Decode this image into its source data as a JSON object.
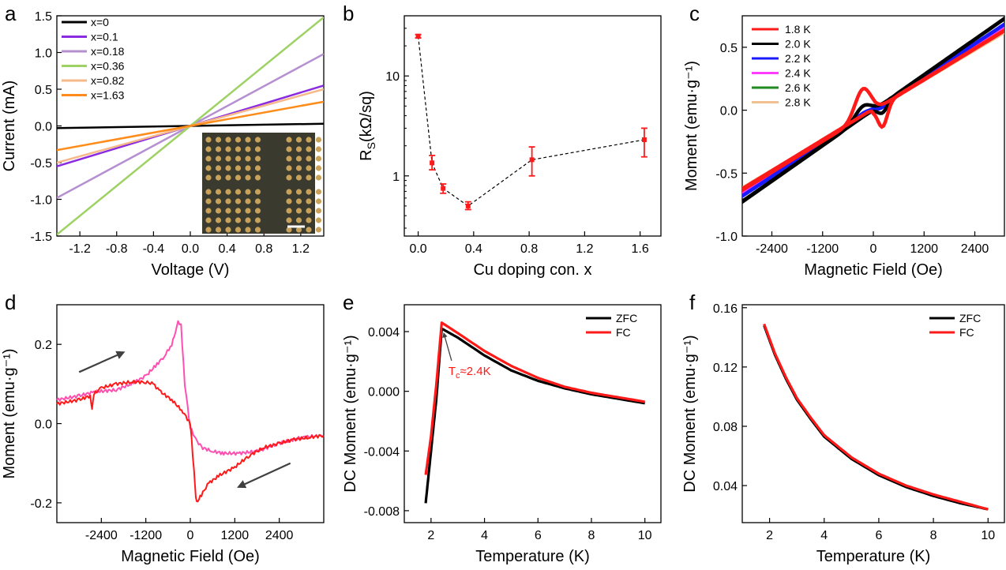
{
  "colors": {
    "black": "#000000",
    "red": "#ff1a1a",
    "purple": "#8a2be2",
    "lavender": "#b58fd0",
    "green": "#9ed264",
    "peach": "#f5b98a",
    "orange": "#ff8c1a",
    "blue": "#1a1aff",
    "magenta": "#ff3cff",
    "darkgreen": "#1f8a1f",
    "tan": "#f0c090",
    "pink": "#ff4fb0",
    "arrow": "#404040"
  },
  "chart_data": [
    {
      "panel": "a",
      "type": "line",
      "xlabel": "Voltage (V)",
      "ylabel": "Current (mA)",
      "xlim": [
        -1.45,
        1.45
      ],
      "ylim": [
        -1.5,
        1.5
      ],
      "xticks": [
        -1.2,
        -0.8,
        -0.4,
        0.0,
        0.4,
        0.8,
        1.2
      ],
      "xtick_labels": [
        "-1.2",
        "-0.8",
        "-0.4",
        "0.0",
        "0.4",
        "0.8",
        "1.2"
      ],
      "yticks": [
        -1.5,
        -1.0,
        -0.5,
        0.0,
        0.5,
        1.0,
        1.5
      ],
      "ytick_labels": [
        "-1.5",
        "-1.0",
        "-0.5",
        "0.0",
        "0.5",
        "1.0",
        "1.5"
      ],
      "legend": "top-left",
      "inset": "optical micrograph with scale bar",
      "series": [
        {
          "name": "x=0",
          "color": "#000000",
          "x": [
            -1.45,
            1.45
          ],
          "y": [
            -0.03,
            0.03
          ]
        },
        {
          "name": "x=0.1",
          "color": "#8a2be2",
          "x": [
            -1.45,
            1.45
          ],
          "y": [
            -0.55,
            0.55
          ]
        },
        {
          "name": "x=0.18",
          "color": "#b58fd0",
          "x": [
            -1.45,
            1.45
          ],
          "y": [
            -0.98,
            0.98
          ]
        },
        {
          "name": "x=0.36",
          "color": "#9ed264",
          "x": [
            -1.45,
            1.45
          ],
          "y": [
            -1.48,
            1.48
          ]
        },
        {
          "name": "x=0.82",
          "color": "#f5b98a",
          "x": [
            -1.45,
            1.45
          ],
          "y": [
            -0.5,
            0.5
          ]
        },
        {
          "name": "x=1.63",
          "color": "#ff8c1a",
          "x": [
            -1.45,
            1.45
          ],
          "y": [
            -0.33,
            0.33
          ]
        }
      ]
    },
    {
      "panel": "b",
      "type": "scatter",
      "xlabel": "Cu doping con. x",
      "ylabel_main": "R",
      "ylabel_sub": "S",
      "ylabel_rest": "(kΩ/sq)",
      "xlim": [
        -0.1,
        1.75
      ],
      "ylim": [
        0.25,
        40
      ],
      "yscale": "log",
      "xticks": [
        0.0,
        0.4,
        0.8,
        1.2,
        1.6
      ],
      "xtick_labels": [
        "0.0",
        "0.4",
        "0.8",
        "1.2",
        "1.6"
      ],
      "yticks": [
        1,
        10
      ],
      "ytick_labels": [
        "1",
        "10"
      ],
      "points": [
        {
          "x": 0.0,
          "y": 25,
          "lo": 24,
          "hi": 26
        },
        {
          "x": 0.1,
          "y": 1.35,
          "lo": 1.15,
          "hi": 1.6
        },
        {
          "x": 0.18,
          "y": 0.75,
          "lo": 0.67,
          "hi": 0.83
        },
        {
          "x": 0.36,
          "y": 0.5,
          "lo": 0.46,
          "hi": 0.55
        },
        {
          "x": 0.82,
          "y": 1.45,
          "lo": 1.0,
          "hi": 1.95
        },
        {
          "x": 1.63,
          "y": 2.3,
          "lo": 1.55,
          "hi": 3.0
        }
      ],
      "color": "#ff1a1a",
      "line": "dashed"
    },
    {
      "panel": "c",
      "type": "line",
      "xlabel": "Magnetic Field (Oe)",
      "ylabel": "Moment (emu·g⁻¹)",
      "xlim": [
        -3100,
        3100
      ],
      "ylim": [
        -1.0,
        0.75
      ],
      "xticks": [
        -2400,
        -1200,
        0,
        1200,
        2400
      ],
      "xtick_labels": [
        "-2400",
        "-1200",
        "0",
        "1200",
        "2400"
      ],
      "yticks": [
        -1.0,
        -0.5,
        0.0,
        0.5
      ],
      "ytick_labels": [
        "-1.0",
        "-0.5",
        "0.0",
        "0.5"
      ],
      "legend": "top-left",
      "series": [
        {
          "name": "1.8 K",
          "color": "#ff1a1a",
          "slope": 0.000205,
          "loop_amp": 0.22
        },
        {
          "name": "2.0 K",
          "color": "#000000",
          "slope": 0.000235,
          "loop_amp": 0.09
        },
        {
          "name": "2.2 K",
          "color": "#1a1aff",
          "slope": 0.00022,
          "loop_amp": 0.03
        },
        {
          "name": "2.4 K",
          "color": "#ff3cff",
          "slope": 0.00021,
          "loop_amp": 0.01
        },
        {
          "name": "2.6 K",
          "color": "#1f8a1f",
          "slope": 0.000205,
          "loop_amp": 0.0
        },
        {
          "name": "2.8 K",
          "color": "#f0c090",
          "slope": 0.0002,
          "loop_amp": 0.0
        }
      ]
    },
    {
      "panel": "d",
      "type": "line",
      "xlabel": "Magnetic Field (Oe)",
      "ylabel": "Moment (emu·g⁻¹)",
      "xlim": [
        -3600,
        3600
      ],
      "ylim": [
        -0.25,
        0.3
      ],
      "xticks": [
        -2400,
        -1200,
        0,
        1200,
        2400
      ],
      "xtick_labels": [
        "-2400",
        "-1200",
        "0",
        "1200",
        "2400"
      ],
      "yticks": [
        -0.2,
        0.0,
        0.2
      ],
      "ytick_labels": [
        "-0.2",
        "0.0",
        "0.2"
      ],
      "series": [
        {
          "color": "#ff4fb0",
          "x": [
            -3600,
            -3000,
            -2600,
            -2000,
            -1600,
            -1200,
            -900,
            -700,
            -500,
            -400,
            -330,
            -250,
            -150,
            0,
            150,
            300,
            600,
            900,
            1300,
            1800,
            2400,
            3000,
            3600
          ],
          "y": [
            0.06,
            0.07,
            0.08,
            0.085,
            0.1,
            0.12,
            0.15,
            0.17,
            0.2,
            0.23,
            0.255,
            0.25,
            0.1,
            -0.01,
            -0.04,
            -0.06,
            -0.07,
            -0.075,
            -0.075,
            -0.07,
            -0.05,
            -0.035,
            -0.03
          ]
        },
        {
          "color": "#ff1a1a",
          "x": [
            -3600,
            -3000,
            -2700,
            -2650,
            -2600,
            -2400,
            -2000,
            -1600,
            -1200,
            -1000,
            -800,
            -500,
            -200,
            0,
            100,
            150,
            200,
            300,
            500,
            800,
            1200,
            1600,
            2000,
            2400,
            2800,
            3200,
            3600
          ],
          "y": [
            0.05,
            0.06,
            0.07,
            0.04,
            0.075,
            0.09,
            0.1,
            0.105,
            0.105,
            0.1,
            0.08,
            0.06,
            0.03,
            0.0,
            -0.12,
            -0.19,
            -0.195,
            -0.18,
            -0.15,
            -0.13,
            -0.11,
            -0.08,
            -0.06,
            -0.05,
            -0.04,
            -0.035,
            -0.03
          ]
        }
      ],
      "annotations": [
        {
          "type": "arrow",
          "from": [
            -3000,
            0.13
          ],
          "to": [
            -1800,
            0.18
          ]
        },
        {
          "type": "arrow",
          "from": [
            2700,
            -0.1
          ],
          "to": [
            1300,
            -0.16
          ]
        }
      ]
    },
    {
      "panel": "e",
      "type": "line",
      "xlabel": "Temperature (K)",
      "ylabel": "DC Moment (emu·g⁻¹)",
      "xlim": [
        1.0,
        10.6
      ],
      "ylim": [
        -0.0088,
        0.0058
      ],
      "xticks": [
        2,
        4,
        6,
        8,
        10
      ],
      "xtick_labels": [
        "2",
        "4",
        "6",
        "8",
        "10"
      ],
      "yticks": [
        -0.008,
        -0.004,
        0.0,
        0.004
      ],
      "ytick_labels": [
        "-0.008",
        "-0.004",
        "0.000",
        "0.004"
      ],
      "legend": "top-right",
      "series": [
        {
          "name": "ZFC",
          "color": "#000000",
          "x": [
            1.8,
            2.0,
            2.2,
            2.4,
            3.0,
            4.0,
            5.0,
            6.0,
            7.0,
            8.0,
            9.0,
            10.0
          ],
          "y": [
            -0.0075,
            -0.004,
            -0.0005,
            0.0042,
            0.0036,
            0.0024,
            0.0014,
            0.0007,
            0.0002,
            -0.0002,
            -0.0005,
            -0.0008
          ]
        },
        {
          "name": "FC",
          "color": "#ff1a1a",
          "x": [
            1.8,
            2.0,
            2.2,
            2.4,
            3.0,
            4.0,
            5.0,
            6.0,
            7.0,
            8.0,
            9.0,
            10.0
          ],
          "y": [
            -0.0056,
            -0.003,
            0.0005,
            0.0046,
            0.0039,
            0.0027,
            0.0017,
            0.0009,
            0.0003,
            -0.0001,
            -0.0004,
            -0.0007
          ]
        }
      ],
      "annotation": {
        "text_main": "T",
        "text_sub": "c",
        "text_rest": "≈2.4K",
        "arrow_to": [
          2.42,
          0.0042
        ],
        "text_at": [
          2.65,
          0.0011
        ],
        "color": "#ff1a1a"
      }
    },
    {
      "panel": "f",
      "type": "line",
      "xlabel": "Temperature (K)",
      "ylabel": "DC Moment (emu·g⁻¹)",
      "xlim": [
        1.0,
        10.6
      ],
      "ylim": [
        0.015,
        0.162
      ],
      "xticks": [
        2,
        4,
        6,
        8,
        10
      ],
      "xtick_labels": [
        "2",
        "4",
        "6",
        "8",
        "10"
      ],
      "yticks": [
        0.04,
        0.08,
        0.12,
        0.16
      ],
      "ytick_labels": [
        "0.04",
        "0.08",
        "0.12",
        "0.16"
      ],
      "legend": "top-right",
      "series": [
        {
          "name": "ZFC",
          "color": "#000000",
          "x": [
            1.8,
            2.2,
            2.6,
            3.0,
            3.5,
            4.0,
            5.0,
            6.0,
            7.0,
            8.0,
            9.0,
            10.0
          ],
          "y": [
            0.148,
            0.128,
            0.112,
            0.098,
            0.085,
            0.073,
            0.058,
            0.047,
            0.039,
            0.033,
            0.028,
            0.024
          ]
        },
        {
          "name": "FC",
          "color": "#ff1a1a",
          "x": [
            1.8,
            2.2,
            2.6,
            3.0,
            3.5,
            4.0,
            5.0,
            6.0,
            7.0,
            8.0,
            9.0,
            10.0
          ],
          "y": [
            0.149,
            0.129,
            0.113,
            0.099,
            0.086,
            0.074,
            0.059,
            0.048,
            0.04,
            0.034,
            0.029,
            0.024
          ]
        }
      ]
    }
  ]
}
